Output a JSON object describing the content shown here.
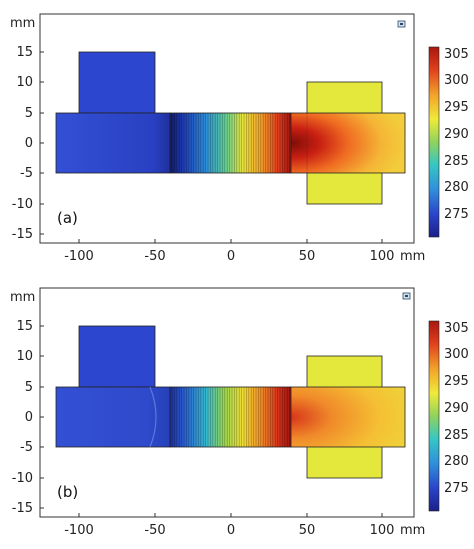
{
  "figure": {
    "panels": [
      {
        "id": "a",
        "label": "(a)",
        "x_unit": "mm",
        "y_unit": "mm",
        "x_ticks": [
          "-100",
          "-50",
          "0",
          "50",
          "100"
        ],
        "y_ticks": [
          "15",
          "10",
          "5",
          "0",
          "-5",
          "-10",
          "-15"
        ],
        "colorbar_ticks": [
          "305",
          "300",
          "295",
          "290",
          "285",
          "280",
          "275"
        ]
      },
      {
        "id": "b",
        "label": "(b)",
        "x_unit": "mm",
        "y_unit": "mm",
        "x_ticks": [
          "-100",
          "-50",
          "0",
          "50",
          "100"
        ],
        "y_ticks": [
          "15",
          "10",
          "5",
          "0",
          "-5",
          "-10",
          "-15"
        ],
        "colorbar_ticks": [
          "305",
          "300",
          "295",
          "290",
          "285",
          "280",
          "275"
        ]
      }
    ],
    "colormap": [
      "#1b1f8a",
      "#2b44c9",
      "#2f8fdc",
      "#36c7c3",
      "#8fd35a",
      "#f0ea3a",
      "#f2a12a",
      "#e0401e",
      "#a8170f"
    ]
  }
}
